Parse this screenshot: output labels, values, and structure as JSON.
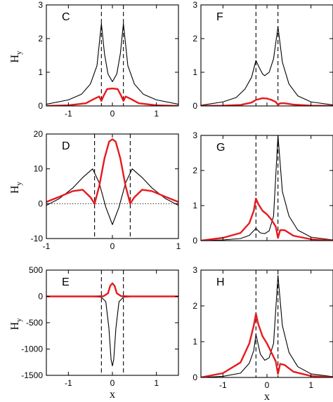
{
  "figure": {
    "ylabel": "H",
    "ylabel_sub": "y",
    "xlabel": "x"
  },
  "colors": {
    "black": "#000000",
    "red": "#e8191c"
  },
  "chart_data": [
    {
      "panel": "C",
      "type": "line",
      "xlim": [
        -1.5,
        1.5
      ],
      "ylim": [
        0,
        3
      ],
      "xticks": [
        -1,
        0,
        1
      ],
      "yticks": [
        0,
        1,
        2,
        3
      ],
      "xtick_labels": [
        "-1",
        "0",
        "1"
      ],
      "ytick_labels": [
        "0",
        "1",
        "2",
        "3"
      ],
      "dashed_x": [
        -0.25,
        0.25
      ],
      "dotted_y": null,
      "ylabel": "H",
      "ylabel_sub": "y",
      "xlabel": "",
      "series": [
        {
          "color": "black",
          "x": [
            -1.5,
            -1.0,
            -0.7,
            -0.5,
            -0.35,
            -0.25,
            -0.18,
            -0.1,
            0,
            0.1,
            0.18,
            0.25,
            0.35,
            0.5,
            0.7,
            1.0,
            1.5
          ],
          "y": [
            0.05,
            0.18,
            0.35,
            0.65,
            1.2,
            2.45,
            1.55,
            0.95,
            0.72,
            0.95,
            1.55,
            2.45,
            1.2,
            0.65,
            0.35,
            0.18,
            0.05
          ]
        },
        {
          "color": "red",
          "x": [
            -1.5,
            -1.0,
            -0.6,
            -0.4,
            -0.3,
            -0.25,
            -0.2,
            -0.12,
            0,
            0.12,
            0.2,
            0.25,
            0.3,
            0.4,
            0.6,
            1.0,
            1.5
          ],
          "y": [
            0.0,
            0.02,
            0.08,
            0.22,
            0.28,
            0.15,
            0.3,
            0.5,
            0.52,
            0.5,
            0.3,
            0.15,
            0.28,
            0.22,
            0.08,
            0.02,
            0.0
          ]
        }
      ]
    },
    {
      "panel": "F",
      "type": "line",
      "xlim": [
        -1.5,
        1.5
      ],
      "ylim": [
        0,
        3
      ],
      "xticks": [
        -1,
        0,
        1
      ],
      "yticks": [
        0,
        1,
        2,
        3
      ],
      "xtick_labels": [
        "",
        "",
        ""
      ],
      "ytick_labels": [
        "0",
        "1",
        "2",
        "3"
      ],
      "dashed_x": [
        -0.25,
        0.25
      ],
      "dotted_y": 0,
      "ylabel": "",
      "ylabel_sub": "",
      "xlabel": "",
      "series": [
        {
          "color": "black",
          "x": [
            -1.5,
            -1.0,
            -0.7,
            -0.5,
            -0.35,
            -0.25,
            -0.18,
            -0.1,
            -0.05,
            0.05,
            0.15,
            0.25,
            0.35,
            0.5,
            0.7,
            1.0,
            1.5
          ],
          "y": [
            0.02,
            0.12,
            0.25,
            0.5,
            0.85,
            1.35,
            1.15,
            0.95,
            0.9,
            1.0,
            1.4,
            2.35,
            1.3,
            0.65,
            0.3,
            0.12,
            0.03
          ]
        },
        {
          "color": "red",
          "x": [
            -1.5,
            -1.0,
            -0.6,
            -0.35,
            -0.25,
            -0.1,
            0.0,
            0.1,
            0.2,
            0.25,
            0.3,
            0.4,
            0.6,
            1.0,
            1.5
          ],
          "y": [
            0.0,
            0.01,
            0.03,
            0.1,
            0.18,
            0.23,
            0.22,
            0.18,
            0.12,
            0.03,
            0.08,
            0.08,
            0.04,
            0.01,
            0.0
          ]
        }
      ]
    },
    {
      "panel": "D",
      "type": "line",
      "xlim": [
        -1,
        1
      ],
      "ylim": [
        -10,
        20
      ],
      "xticks": [
        -1,
        0,
        1
      ],
      "yticks": [
        -10,
        0,
        10,
        20
      ],
      "xtick_labels": [
        "-1",
        "0",
        "1"
      ],
      "ytick_labels": [
        "-10",
        "0",
        "10",
        "20"
      ],
      "dashed_x": [
        -0.27,
        0.27
      ],
      "dotted_y": 0,
      "ylabel": "H",
      "ylabel_sub": "y",
      "xlabel": "",
      "series": [
        {
          "color": "black",
          "x": [
            -1.0,
            -0.8,
            -0.6,
            -0.45,
            -0.3,
            -0.2,
            -0.1,
            0,
            0.1,
            0.2,
            0.3,
            0.45,
            0.6,
            0.8,
            1.0
          ],
          "y": [
            -0.5,
            1.5,
            4.5,
            7.5,
            10.0,
            6.0,
            -1.0,
            -6.0,
            -1.0,
            6.0,
            10.0,
            7.5,
            4.5,
            1.5,
            -0.5
          ]
        },
        {
          "color": "red",
          "x": [
            -1.0,
            -0.8,
            -0.6,
            -0.45,
            -0.33,
            -0.27,
            -0.2,
            -0.12,
            -0.05,
            0,
            0.05,
            0.12,
            0.2,
            0.27,
            0.33,
            0.45,
            0.6,
            0.8,
            1.0
          ],
          "y": [
            0.5,
            2.0,
            3.6,
            4.0,
            1.8,
            0.0,
            5.0,
            13.0,
            17.8,
            18.5,
            17.8,
            13.0,
            5.0,
            0.0,
            1.8,
            4.0,
            3.6,
            2.0,
            0.5
          ]
        }
      ]
    },
    {
      "panel": "G",
      "type": "line",
      "xlim": [
        -1.5,
        1.5
      ],
      "ylim": [
        0,
        3
      ],
      "xticks": [
        -1,
        0,
        1
      ],
      "yticks": [
        0,
        1,
        2,
        3
      ],
      "xtick_labels": [
        "",
        "",
        ""
      ],
      "ytick_labels": [
        "0",
        "1",
        "2",
        "3"
      ],
      "dashed_x": [
        -0.25,
        0.25
      ],
      "dotted_y": 0,
      "ylabel": "",
      "ylabel_sub": "",
      "xlabel": "",
      "series": [
        {
          "color": "black",
          "x": [
            -1.5,
            -1.0,
            -0.6,
            -0.4,
            -0.25,
            -0.15,
            -0.05,
            0.05,
            0.15,
            0.25,
            0.35,
            0.5,
            0.7,
            1.0,
            1.5
          ],
          "y": [
            0.0,
            0.02,
            0.06,
            0.15,
            0.35,
            0.22,
            0.2,
            0.28,
            0.7,
            3.0,
            1.4,
            0.7,
            0.3,
            0.1,
            0.02
          ]
        },
        {
          "color": "red",
          "x": [
            -1.5,
            -1.0,
            -0.6,
            -0.4,
            -0.3,
            -0.25,
            -0.2,
            -0.1,
            0.0,
            0.1,
            0.2,
            0.25,
            0.3,
            0.4,
            0.6,
            1.0,
            1.5
          ],
          "y": [
            0.0,
            0.08,
            0.22,
            0.5,
            0.85,
            1.2,
            1.05,
            0.85,
            0.75,
            0.6,
            0.4,
            0.08,
            0.3,
            0.3,
            0.14,
            0.04,
            0.0
          ]
        }
      ]
    },
    {
      "panel": "E",
      "type": "line",
      "xlim": [
        -1.5,
        1.5
      ],
      "ylim": [
        -1500,
        500
      ],
      "xticks": [
        -1,
        0,
        1
      ],
      "yticks": [
        -1500,
        -1000,
        -500,
        0,
        500
      ],
      "xtick_labels": [
        "-1",
        "0",
        "1"
      ],
      "ytick_labels": [
        "-1500",
        "-1000",
        "-500",
        "0",
        "500"
      ],
      "dashed_x": [
        -0.25,
        0.25
      ],
      "dotted_y": null,
      "ylabel": "H",
      "ylabel_sub": "y",
      "xlabel": "x",
      "series": [
        {
          "color": "black",
          "x": [
            -1.5,
            -0.5,
            -0.25,
            -0.15,
            -0.08,
            -0.03,
            0,
            0.03,
            0.08,
            0.15,
            0.25,
            0.5,
            1.5
          ],
          "y": [
            0,
            -2,
            -15,
            -100,
            -600,
            -1200,
            -1320,
            -1200,
            -600,
            -100,
            -15,
            -2,
            0
          ]
        },
        {
          "color": "red",
          "x": [
            -1.5,
            -0.4,
            -0.2,
            -0.1,
            -0.05,
            0,
            0.05,
            0.1,
            0.2,
            0.4,
            1.5
          ],
          "y": [
            0,
            0,
            5,
            60,
            200,
            250,
            200,
            60,
            5,
            0,
            0
          ]
        }
      ]
    },
    {
      "panel": "H",
      "type": "line",
      "xlim": [
        -1.5,
        1.5
      ],
      "ylim": [
        0,
        3
      ],
      "xticks": [
        -1,
        0,
        1
      ],
      "yticks": [
        0,
        1,
        2,
        3
      ],
      "xtick_labels": [
        "-1",
        "0",
        "1"
      ],
      "ytick_labels": [
        "0",
        "1",
        "2",
        "3"
      ],
      "dashed_x": [
        -0.25,
        0.25
      ],
      "dotted_y": 0,
      "ylabel": "",
      "ylabel_sub": "",
      "xlabel": "x",
      "series": [
        {
          "color": "black",
          "x": [
            -1.5,
            -1.0,
            -0.6,
            -0.4,
            -0.3,
            -0.25,
            -0.15,
            -0.05,
            0.05,
            0.15,
            0.25,
            0.35,
            0.5,
            0.7,
            1.0,
            1.5
          ],
          "y": [
            0.0,
            0.03,
            0.12,
            0.4,
            0.75,
            1.2,
            0.65,
            0.48,
            0.55,
            0.95,
            2.85,
            1.45,
            0.7,
            0.3,
            0.1,
            0.02
          ]
        },
        {
          "color": "red",
          "x": [
            -1.5,
            -1.0,
            -0.6,
            -0.4,
            -0.3,
            -0.25,
            -0.2,
            -0.1,
            0.0,
            0.1,
            0.2,
            0.25,
            0.3,
            0.4,
            0.6,
            1.0,
            1.5
          ],
          "y": [
            0.0,
            0.12,
            0.42,
            0.95,
            1.45,
            1.78,
            1.5,
            1.15,
            0.95,
            0.7,
            0.45,
            0.1,
            0.38,
            0.35,
            0.16,
            0.04,
            0.0
          ]
        }
      ]
    }
  ]
}
